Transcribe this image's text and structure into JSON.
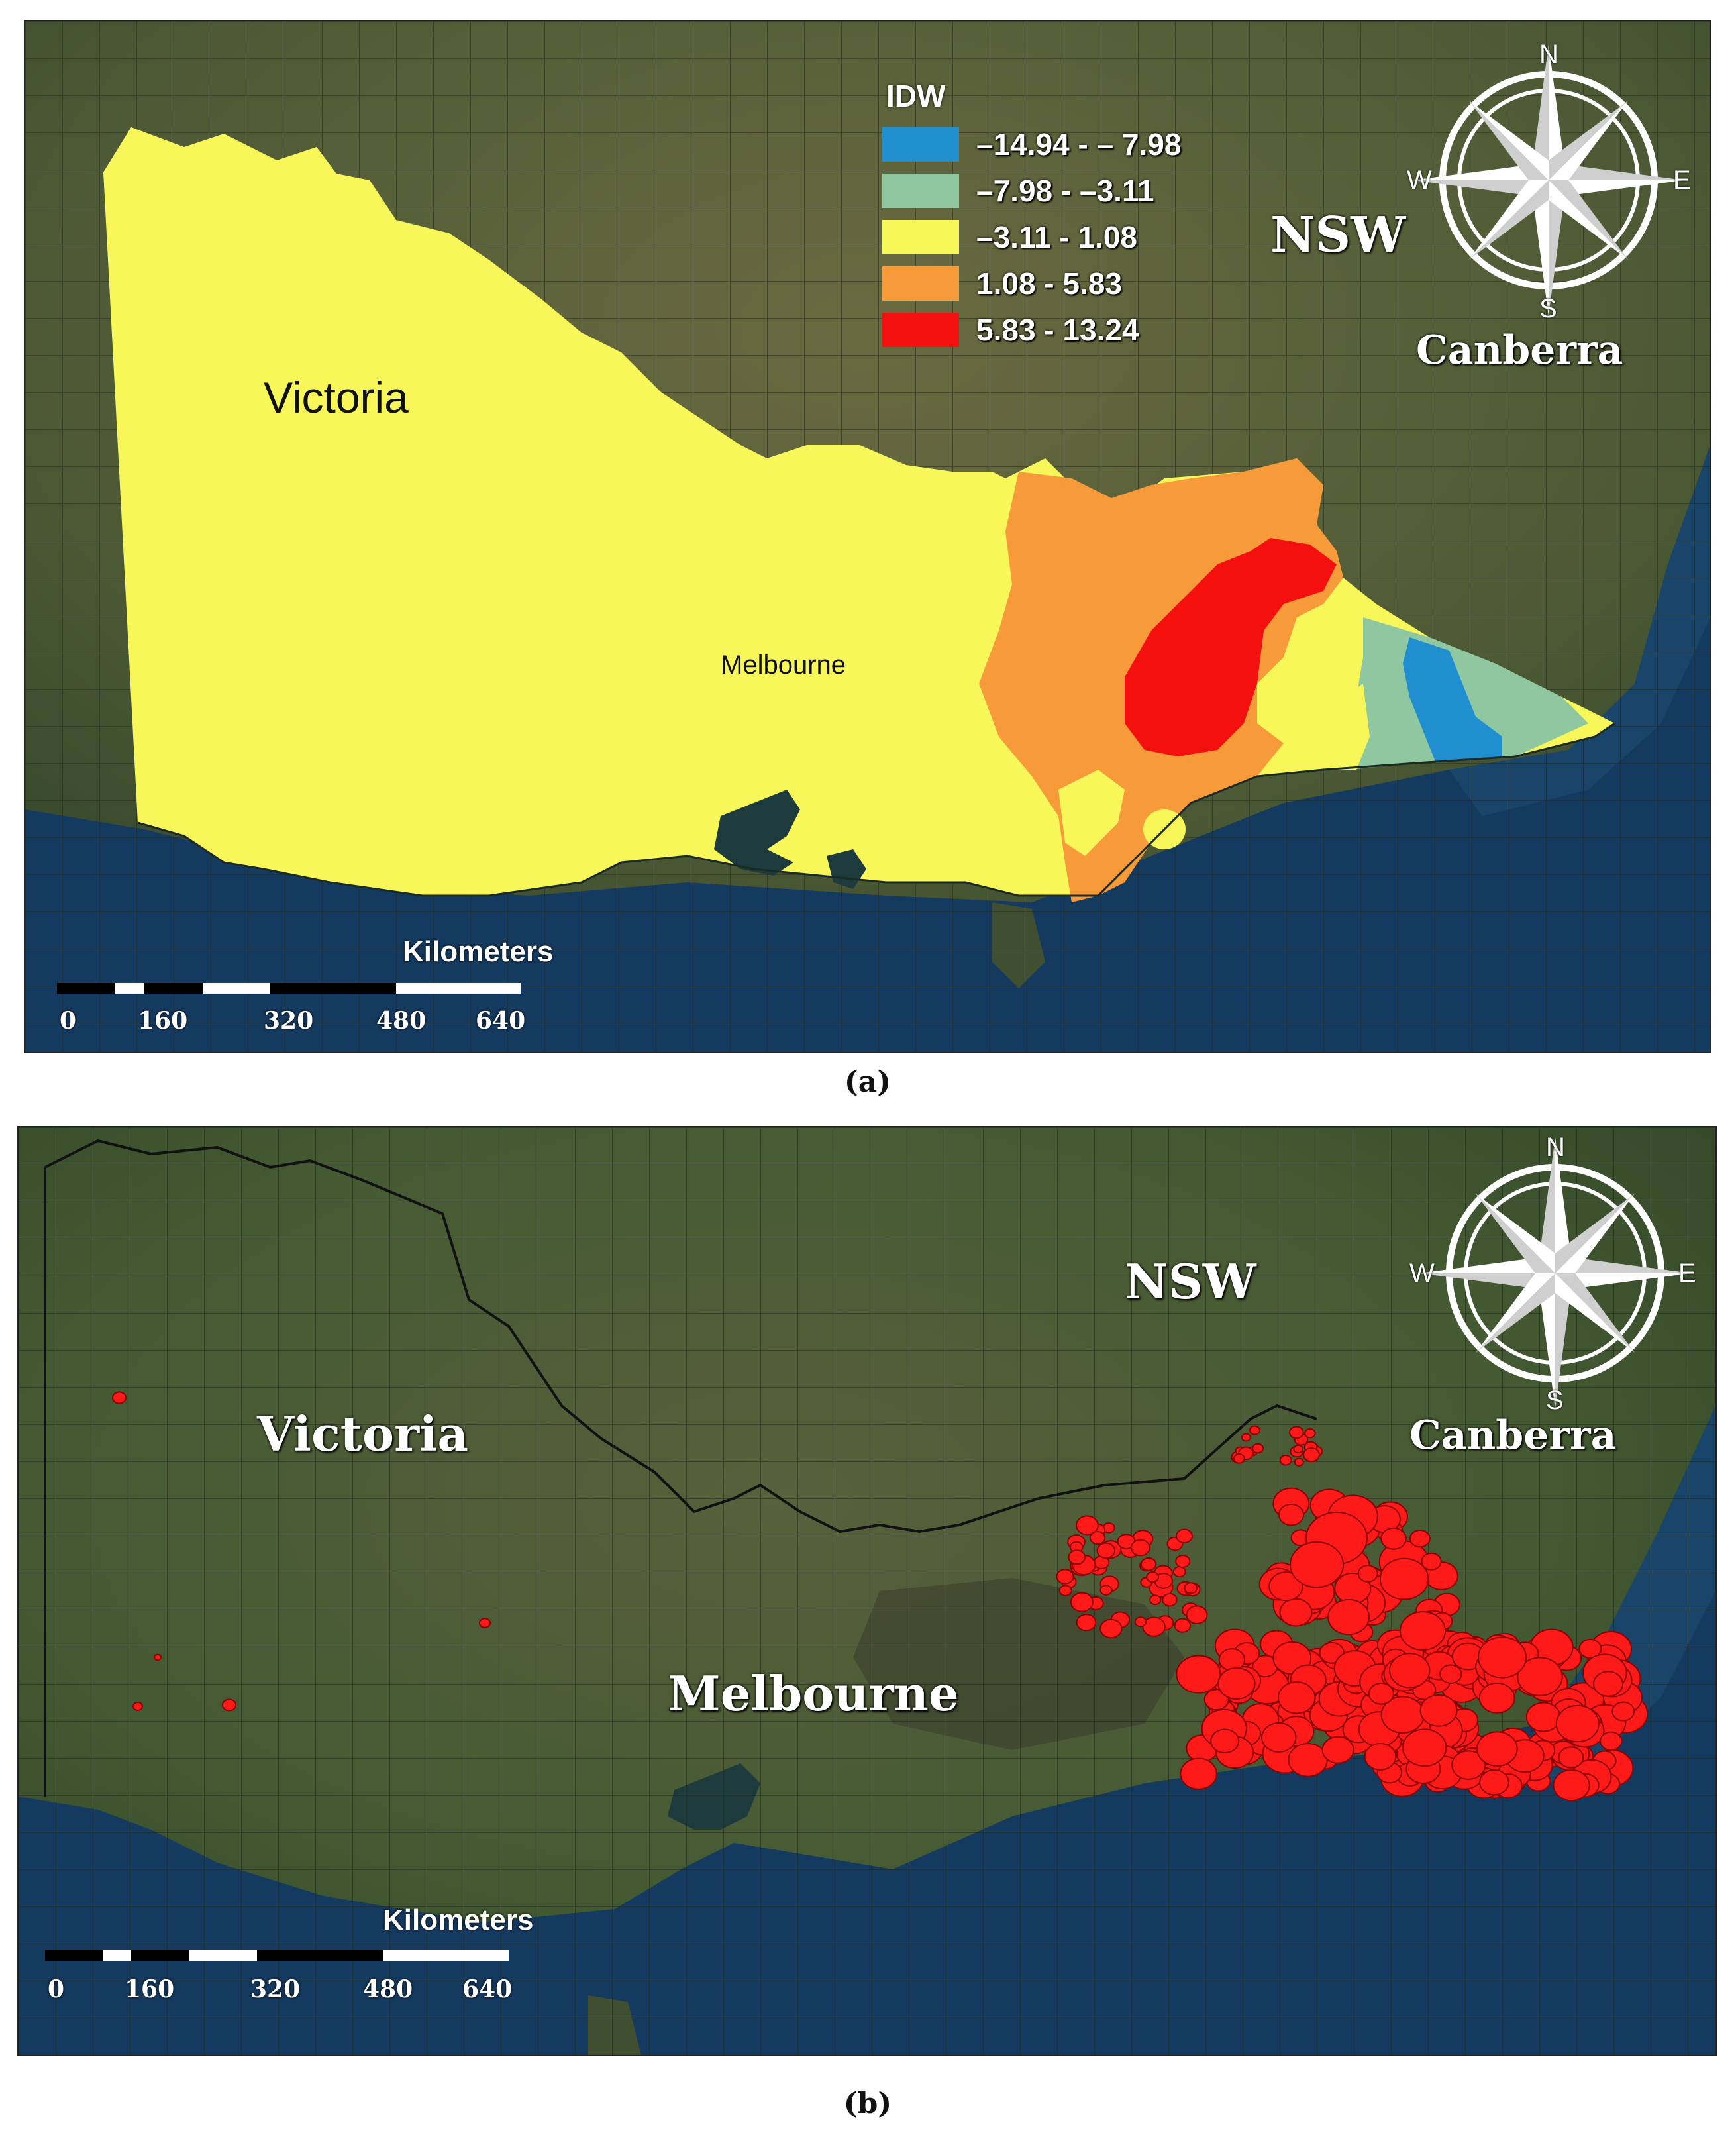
{
  "panel_a": {
    "caption": "(a)",
    "state_label": "Victoria",
    "city_label": "Melbourne",
    "region_label": "NSW",
    "capital_label": "Canberra",
    "legend": {
      "title": "IDW",
      "items": [
        {
          "label": "–14.94 - – 7.98",
          "color": "#1f8fd0"
        },
        {
          "label": "–7.98 - –3.11",
          "color": "#8fc7a0"
        },
        {
          "label": "–3.11 - 1.08",
          "color": "#f7f75a"
        },
        {
          "label": "1.08 - 5.83",
          "color": "#f79a3a"
        },
        {
          "label": "5.83 - 13.24",
          "color": "#f51010"
        }
      ]
    },
    "scale": {
      "title": "Kilometers",
      "ticks": [
        "0",
        "160",
        "320",
        "480",
        "640"
      ]
    },
    "compass": {
      "n": "N",
      "s": "S",
      "e": "E",
      "w": "W"
    }
  },
  "panel_b": {
    "caption": "(b)",
    "state_label": "Victoria",
    "city_label": "Melbourne",
    "region_label": "NSW",
    "capital_label": "Canberra",
    "fire_color": "#ff1a1a",
    "scale": {
      "title": "Kilometers",
      "ticks": [
        "0",
        "160",
        "320",
        "480",
        "640"
      ]
    },
    "compass": {
      "n": "N",
      "s": "S",
      "e": "E",
      "w": "W"
    }
  },
  "colors": {
    "land": "#4a5a34",
    "land_dark": "#33452a",
    "ocean": "#163a5e",
    "ocean_deep": "#0f2b4a",
    "bay": "#1d3a3c"
  }
}
